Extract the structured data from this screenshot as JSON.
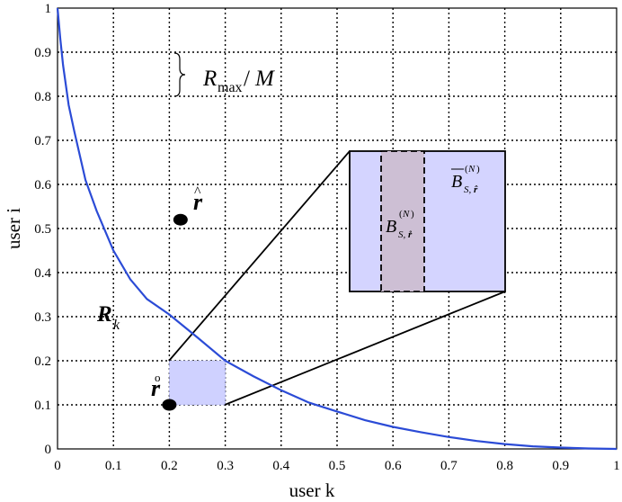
{
  "chart_data": {
    "type": "line",
    "xlabel": "user k",
    "ylabel": "user i",
    "xlim": [
      0,
      1
    ],
    "ylim": [
      0,
      1
    ],
    "x_ticks": [
      "0",
      "0.1",
      "0.2",
      "0.3",
      "0.4",
      "0.5",
      "0.6",
      "0.7",
      "0.8",
      "0.9",
      "1"
    ],
    "y_ticks": [
      "0",
      "0.1",
      "0.2",
      "0.3",
      "0.4",
      "0.5",
      "0.6",
      "0.7",
      "0.8",
      "0.9",
      "1"
    ],
    "grid": "dotted",
    "series": [
      {
        "name": "R_k",
        "color": "#2b4bd6",
        "x": [
          0,
          0.005,
          0.01,
          0.02,
          0.03,
          0.05,
          0.07,
          0.1,
          0.13,
          0.16,
          0.2,
          0.25,
          0.3,
          0.35,
          0.4,
          0.45,
          0.5,
          0.55,
          0.6,
          0.65,
          0.7,
          0.75,
          0.8,
          0.85,
          0.9,
          0.95,
          1.0
        ],
        "y": [
          1.0,
          0.93,
          0.87,
          0.78,
          0.72,
          0.61,
          0.54,
          0.45,
          0.385,
          0.34,
          0.305,
          0.253,
          0.2,
          0.165,
          0.133,
          0.105,
          0.085,
          0.065,
          0.05,
          0.038,
          0.027,
          0.018,
          0.011,
          0.006,
          0.003,
          0.001,
          0.0
        ]
      }
    ],
    "points": [
      {
        "name": "r_hat",
        "x": 0.22,
        "y": 0.52,
        "label": "r̂"
      },
      {
        "name": "r_ring",
        "x": 0.2,
        "y": 0.1,
        "label": "r̊"
      }
    ],
    "region": {
      "x": [
        0.2,
        0.3
      ],
      "y": [
        0.1,
        0.2
      ],
      "color": "#cfd1ff"
    },
    "annotations": {
      "step": "R_max/M",
      "curve_label": "R_k",
      "inset_outer": "B̄_{S,r̂}^{(N)}",
      "inset_inner": "B_{S,r̂}^{(N)}"
    }
  }
}
